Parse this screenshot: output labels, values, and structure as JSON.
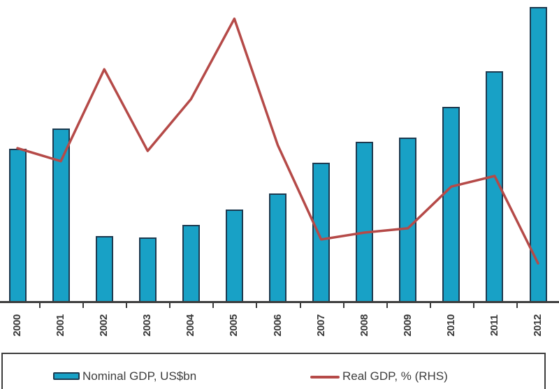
{
  "chart_data": {
    "type": "bar+line",
    "title": "",
    "categories": [
      "2000",
      "2001",
      "2002",
      "2003",
      "2004",
      "2005",
      "2006",
      "2007",
      "2008",
      "2009",
      "2010",
      "2011",
      "2012"
    ],
    "series": [
      {
        "name": "Nominal GDP, US$bn",
        "type": "bar",
        "values": [
          50.8,
          57.5,
          21.9,
          21.5,
          25.6,
          30.7,
          36.0,
          46.2,
          53.1,
          54.5,
          64.7,
          76.4,
          97.7
        ],
        "color": "#18a1c6",
        "border_color": "#1d3a50"
      },
      {
        "name": "Real GDP, % (RHS)",
        "type": "line",
        "values": [
          51.0,
          46.7,
          77.1,
          50.1,
          67.2,
          93.8,
          52.0,
          20.8,
          23.1,
          24.5,
          38.3,
          41.8,
          12.9
        ],
        "color": "#b54a48"
      }
    ],
    "value_units": "relative (% of plot height); value axes are cropped out of the screenshot",
    "ylim": [
      0,
      100
    ],
    "grid": false,
    "legend_position": "bottom"
  },
  "legend": {
    "items": [
      {
        "label": "Nominal GDP, US$bn",
        "swatch": "bar-swatch-icon"
      },
      {
        "label": "Real GDP, % (RHS)",
        "swatch": "line-swatch-icon"
      }
    ]
  },
  "colors": {
    "bar_fill": "#18a1c6",
    "bar_border": "#1d3a50",
    "line": "#b54a48",
    "axis": "#3d3d3d",
    "text": "#3d3d3d",
    "background": "#ffffff"
  }
}
